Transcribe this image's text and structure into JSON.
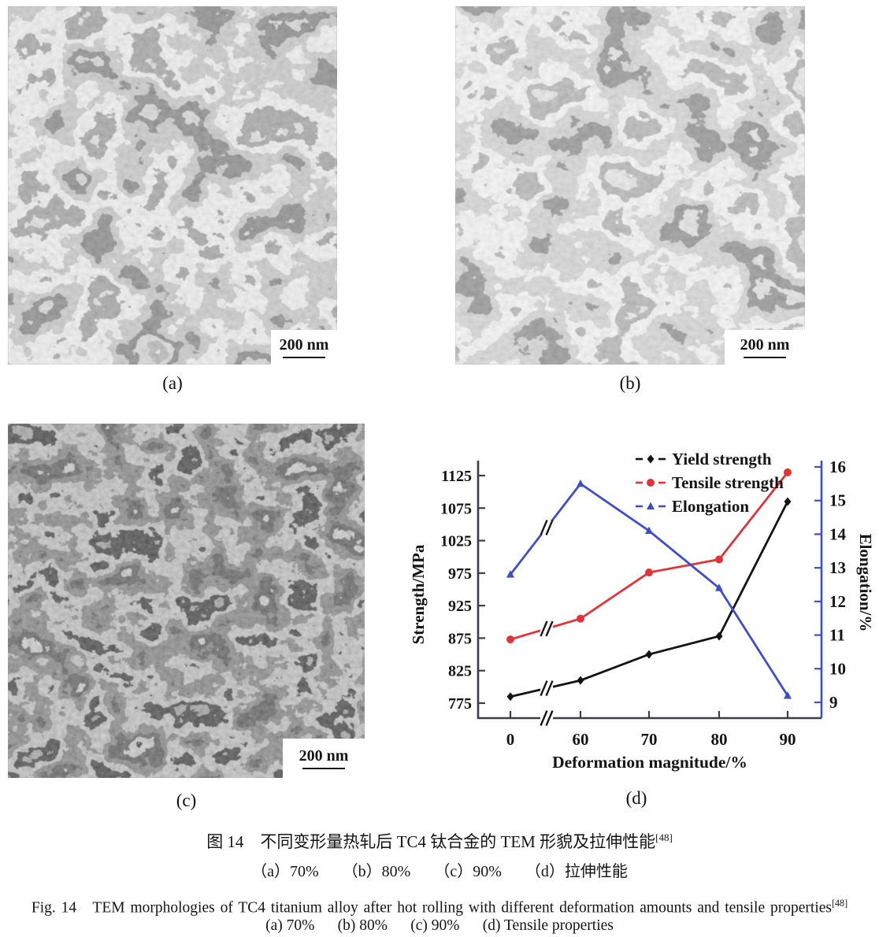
{
  "figure": {
    "panels": [
      {
        "id": "a",
        "label": "(a)",
        "scale_label": "200 nm"
      },
      {
        "id": "b",
        "label": "(b)",
        "scale_label": "200 nm"
      },
      {
        "id": "c",
        "label": "(c)",
        "scale_label": "200 nm"
      },
      {
        "id": "d",
        "label": "(d)"
      }
    ],
    "captions": {
      "zh_title": "图 14　不同变形量热轧后 TC4 钛合金的 TEM 形貌及拉伸性能",
      "zh_sub": "（a）70%　　（b）80%　　（c）90%　　（d）拉伸性能",
      "en_title": "Fig. 14   TEM morphologies of TC4 titanium alloy after hot rolling with different deformation amounts and tensile properties",
      "en_sub": "(a) 70%      (b) 80%      (c) 90%      (d) Tensile properties",
      "reference": "[48]"
    }
  },
  "chart_data": {
    "type": "line",
    "x": [
      0,
      60,
      70,
      80,
      90
    ],
    "x_axis": {
      "label": "Deformation magnitude/%",
      "break_between": [
        0,
        60
      ]
    },
    "y_left": {
      "label": "Strength/MPa",
      "ticks": [
        775,
        825,
        875,
        925,
        975,
        1025,
        1075,
        1125
      ],
      "range": [
        750,
        1150
      ]
    },
    "y_right": {
      "label": "Elongation/%",
      "ticks": [
        9,
        10,
        11,
        12,
        13,
        14,
        15,
        16
      ],
      "range": [
        8.5,
        16.3
      ]
    },
    "series": [
      {
        "name": "Yield strength",
        "axis": "left",
        "color": "#141414",
        "marker": "diamond",
        "values": [
          785,
          810,
          850,
          878,
          1085
        ]
      },
      {
        "name": "Tensile strength",
        "axis": "left",
        "color": "#e0343a",
        "marker": "circle",
        "values": [
          873,
          905,
          976,
          996,
          1130
        ]
      },
      {
        "name": "Elongation",
        "axis": "right",
        "color": "#3e4ec4",
        "marker": "triangle",
        "values": [
          12.8,
          15.5,
          14.1,
          12.4,
          9.2
        ]
      }
    ],
    "legend_position": "top-right-inside",
    "axis_color": "#3d3d47"
  }
}
